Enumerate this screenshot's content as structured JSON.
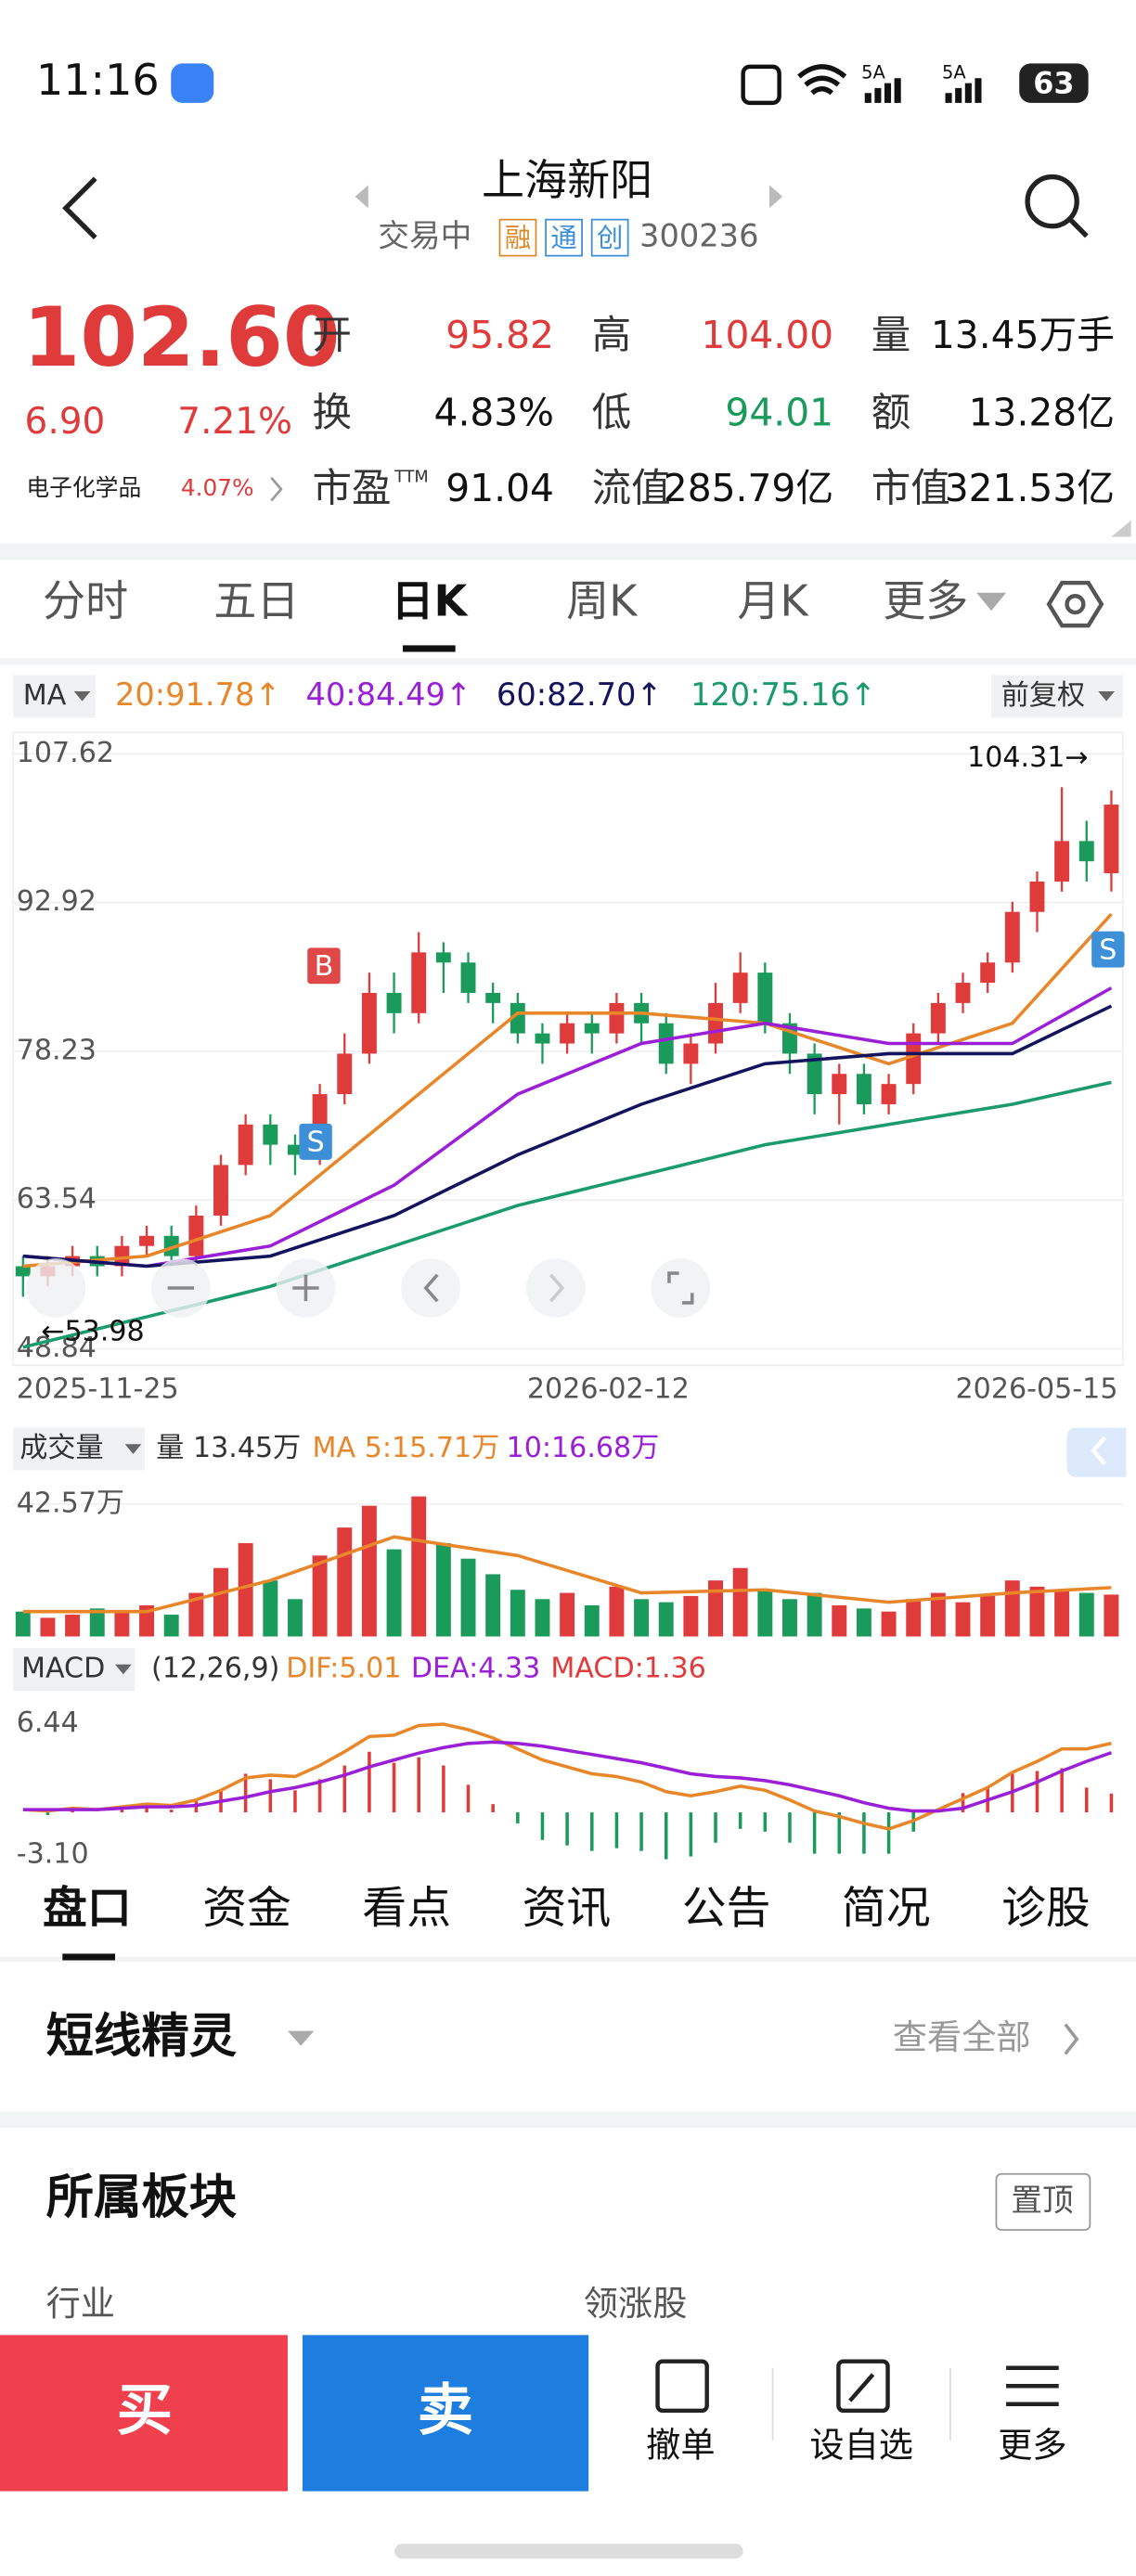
{
  "status": {
    "time": "11:16",
    "net1": "5A",
    "net2": "5A",
    "battery": "63"
  },
  "header": {
    "title": "上海新阳",
    "status": "交易中",
    "badges": [
      "融",
      "通",
      "创"
    ],
    "code": "300236"
  },
  "quote": {
    "price": "102.60",
    "change": "6.90",
    "pct": "7.21%",
    "sector": "电子化学品",
    "sector_pct": "4.07%",
    "stats": [
      [
        {
          "label": "开",
          "value": "95.82",
          "tone": "up"
        },
        {
          "label": "高",
          "value": "104.00",
          "tone": "up"
        },
        {
          "label": "量",
          "value": "13.45万手"
        }
      ],
      [
        {
          "label": "换",
          "value": "4.83%"
        },
        {
          "label": "低",
          "value": "94.01",
          "tone": "down"
        },
        {
          "label": "额",
          "value": "13.28亿"
        }
      ],
      [
        {
          "label": "市盈",
          "sup": "TTM",
          "value": "91.04"
        },
        {
          "label": "流值",
          "value": "285.79亿"
        },
        {
          "label": "市值",
          "value": "321.53亿"
        }
      ]
    ]
  },
  "period_tabs": [
    "分时",
    "五日",
    "日K",
    "周K",
    "月K",
    "更多"
  ],
  "chart": {
    "type": "candlestick",
    "ma_label": "MA",
    "adjust": "前复权",
    "ma_legend": [
      {
        "text": "20:91.78↑",
        "color": "#e8862a"
      },
      {
        "text": "40:84.49↑",
        "color": "#9b1fd6"
      },
      {
        "text": "60:82.70↑",
        "color": "#14145e"
      },
      {
        "text": "120:75.16↑",
        "color": "#1a9b6c"
      }
    ],
    "ylim": [
      48.84,
      107.62
    ],
    "yticks": [
      107.62,
      92.92,
      78.23,
      63.54,
      48.84
    ],
    "x_labels": [
      "2025-11-25",
      "2026-02-12",
      "2026-05-15"
    ],
    "high_label": "104.31→",
    "low_label": "←53.98",
    "signals": [
      "B",
      "S",
      "S"
    ],
    "up_color": "#e03b3b",
    "down_color": "#1a9b5c",
    "candles": [
      [
        57,
        56,
        58,
        53.98
      ],
      [
        56,
        57,
        58,
        55
      ],
      [
        57,
        58,
        59,
        56
      ],
      [
        58,
        57,
        59,
        56
      ],
      [
        57,
        59,
        60,
        56
      ],
      [
        59,
        60,
        61,
        58
      ],
      [
        60,
        58,
        61,
        57
      ],
      [
        58,
        62,
        63,
        57
      ],
      [
        62,
        67,
        68,
        61
      ],
      [
        67,
        71,
        72,
        66
      ],
      [
        71,
        69,
        72,
        67
      ],
      [
        69,
        68,
        70,
        66
      ],
      [
        68,
        74,
        75,
        67
      ],
      [
        74,
        78,
        80,
        73
      ],
      [
        78,
        84,
        86,
        77
      ],
      [
        84,
        82,
        86,
        80
      ],
      [
        82,
        88,
        90,
        81
      ],
      [
        88,
        87,
        89,
        84
      ],
      [
        87,
        84,
        88,
        83
      ],
      [
        84,
        83,
        85,
        81
      ],
      [
        83,
        80,
        84,
        79
      ],
      [
        80,
        79,
        81,
        77
      ],
      [
        79,
        81,
        82,
        78
      ],
      [
        81,
        80,
        82,
        78
      ],
      [
        80,
        83,
        84,
        79
      ],
      [
        83,
        81,
        84,
        79
      ],
      [
        81,
        77,
        82,
        76
      ],
      [
        77,
        79,
        80,
        75
      ],
      [
        79,
        83,
        85,
        78
      ],
      [
        83,
        86,
        88,
        82
      ],
      [
        86,
        81,
        87,
        80
      ],
      [
        81,
        78,
        82,
        76
      ],
      [
        78,
        74,
        79,
        72
      ],
      [
        74,
        76,
        77,
        71
      ],
      [
        76,
        73,
        77,
        72
      ],
      [
        73,
        75,
        76,
        72
      ],
      [
        75,
        80,
        81,
        74
      ],
      [
        80,
        83,
        84,
        79
      ],
      [
        83,
        85,
        86,
        82
      ],
      [
        85,
        87,
        88,
        84
      ],
      [
        87,
        92,
        93,
        86
      ],
      [
        92,
        95,
        96,
        90
      ],
      [
        95,
        99,
        104.31,
        94
      ],
      [
        99,
        97,
        101,
        95
      ],
      [
        95.82,
        102.6,
        104,
        94.01
      ]
    ],
    "ma_lines": [
      {
        "color": "#e8862a",
        "x": [
          0,
          5,
          10,
          15,
          20,
          25,
          30,
          35,
          40,
          44
        ],
        "values": [
          57,
          58,
          62,
          72,
          82,
          82,
          81,
          77,
          81,
          91.78
        ]
      },
      {
        "color": "#9b1fd6",
        "x": [
          0,
          5,
          10,
          15,
          20,
          25,
          30,
          35,
          40,
          44
        ],
        "values": [
          58,
          57,
          59,
          65,
          74,
          79,
          81,
          79,
          79,
          84.49
        ]
      },
      {
        "color": "#14145e",
        "x": [
          0,
          5,
          10,
          15,
          20,
          25,
          30,
          35,
          40,
          44
        ],
        "values": [
          58,
          57,
          58,
          62,
          68,
          73,
          77,
          78,
          78,
          82.7
        ]
      },
      {
        "color": "#1a9b6c",
        "x": [
          0,
          5,
          10,
          15,
          20,
          25,
          30,
          35,
          40,
          44
        ],
        "values": [
          49,
          52,
          55,
          59,
          63,
          66,
          69,
          71,
          73,
          75.16
        ]
      }
    ],
    "volume": {
      "title": "成交量",
      "legend": [
        "量 13.45万",
        "MA 5:15.71万",
        "10:16.68万"
      ],
      "ylim": [
        0,
        47.54
      ],
      "yticks": [
        {
          "value": 42.57,
          "label": "42.57万"
        }
      ],
      "values": [
        8,
        6,
        7,
        9,
        8,
        10,
        7,
        14,
        22,
        30,
        18,
        12,
        26,
        35,
        42,
        28,
        45,
        30,
        25,
        20,
        15,
        12,
        14,
        10,
        16,
        12,
        11,
        13,
        18,
        22,
        15,
        12,
        14,
        10,
        9,
        8,
        12,
        14,
        11,
        13,
        18,
        16,
        15,
        14,
        13.45
      ],
      "ma": {
        "color": "#e8862a",
        "x": [
          0,
          5,
          10,
          15,
          20,
          25,
          30,
          35,
          40,
          44
        ],
        "values": [
          8,
          8,
          18,
          32,
          26,
          14,
          15,
          11,
          14,
          15.71
        ]
      }
    },
    "macd": {
      "title": "MACD",
      "params": "(12,26,9)",
      "legend": [
        {
          "text": "DIF:5.01",
          "color": "#e8862a"
        },
        {
          "text": "DEA:4.33",
          "color": "#9b1fd6"
        },
        {
          "text": "MACD:1.36",
          "color": "#e03b3b"
        }
      ],
      "ylim": [
        -3.1,
        6.44
      ],
      "yticks": [
        6.44,
        {
          "value": -3.1,
          "label": "-3.10"
        }
      ],
      "dif": [
        0.2,
        0.1,
        0.3,
        0.2,
        0.4,
        0.6,
        0.5,
        0.9,
        1.6,
        2.5,
        2.7,
        2.6,
        3.4,
        4.4,
        5.5,
        5.6,
        6.3,
        6.4,
        6.0,
        5.4,
        4.6,
        3.8,
        3.3,
        2.8,
        2.6,
        2.2,
        1.5,
        1.2,
        1.5,
        1.9,
        1.6,
        0.9,
        0.1,
        -0.3,
        -0.8,
        -1.2,
        -0.6,
        0.2,
        1.0,
        1.8,
        2.9,
        3.7,
        4.6,
        4.6,
        5.01
      ],
      "dea": [
        0.2,
        0.2,
        0.2,
        0.2,
        0.3,
        0.4,
        0.4,
        0.5,
        0.8,
        1.1,
        1.5,
        1.8,
        2.2,
        2.7,
        3.3,
        3.8,
        4.3,
        4.7,
        5.0,
        5.1,
        5.0,
        4.8,
        4.5,
        4.2,
        3.9,
        3.6,
        3.2,
        2.8,
        2.6,
        2.5,
        2.3,
        2.0,
        1.6,
        1.2,
        0.7,
        0.3,
        0.1,
        0.1,
        0.3,
        0.9,
        1.5,
        2.2,
        3.0,
        3.7,
        4.33
      ],
      "hist": [
        0,
        -0.2,
        0.2,
        0,
        0.2,
        0.4,
        0.2,
        0.8,
        1.6,
        2.8,
        2.4,
        1.6,
        2.4,
        3.4,
        4.4,
        3.6,
        4.0,
        3.4,
        2.0,
        0.6,
        -0.8,
        -2.0,
        -2.4,
        -2.8,
        -2.6,
        -2.8,
        -3.4,
        -3.2,
        -2.2,
        -1.2,
        -1.4,
        -2.2,
        -3.0,
        -3.0,
        -3.0,
        -3.0,
        -1.4,
        0.2,
        1.4,
        1.8,
        2.8,
        3.0,
        3.2,
        1.8,
        1.36
      ]
    }
  },
  "info_tabs": [
    "盘口",
    "资金",
    "看点",
    "资讯",
    "公告",
    "简况",
    "诊股"
  ],
  "sections": {
    "short": "短线精灵",
    "view_all": "查看全部",
    "sector_title": "所属板块",
    "pin": "置顶",
    "industry": "行业",
    "leader": "领涨股"
  },
  "actions": {
    "buy": "买",
    "sell": "卖",
    "items": [
      "撤单",
      "设自选",
      "更多"
    ]
  }
}
